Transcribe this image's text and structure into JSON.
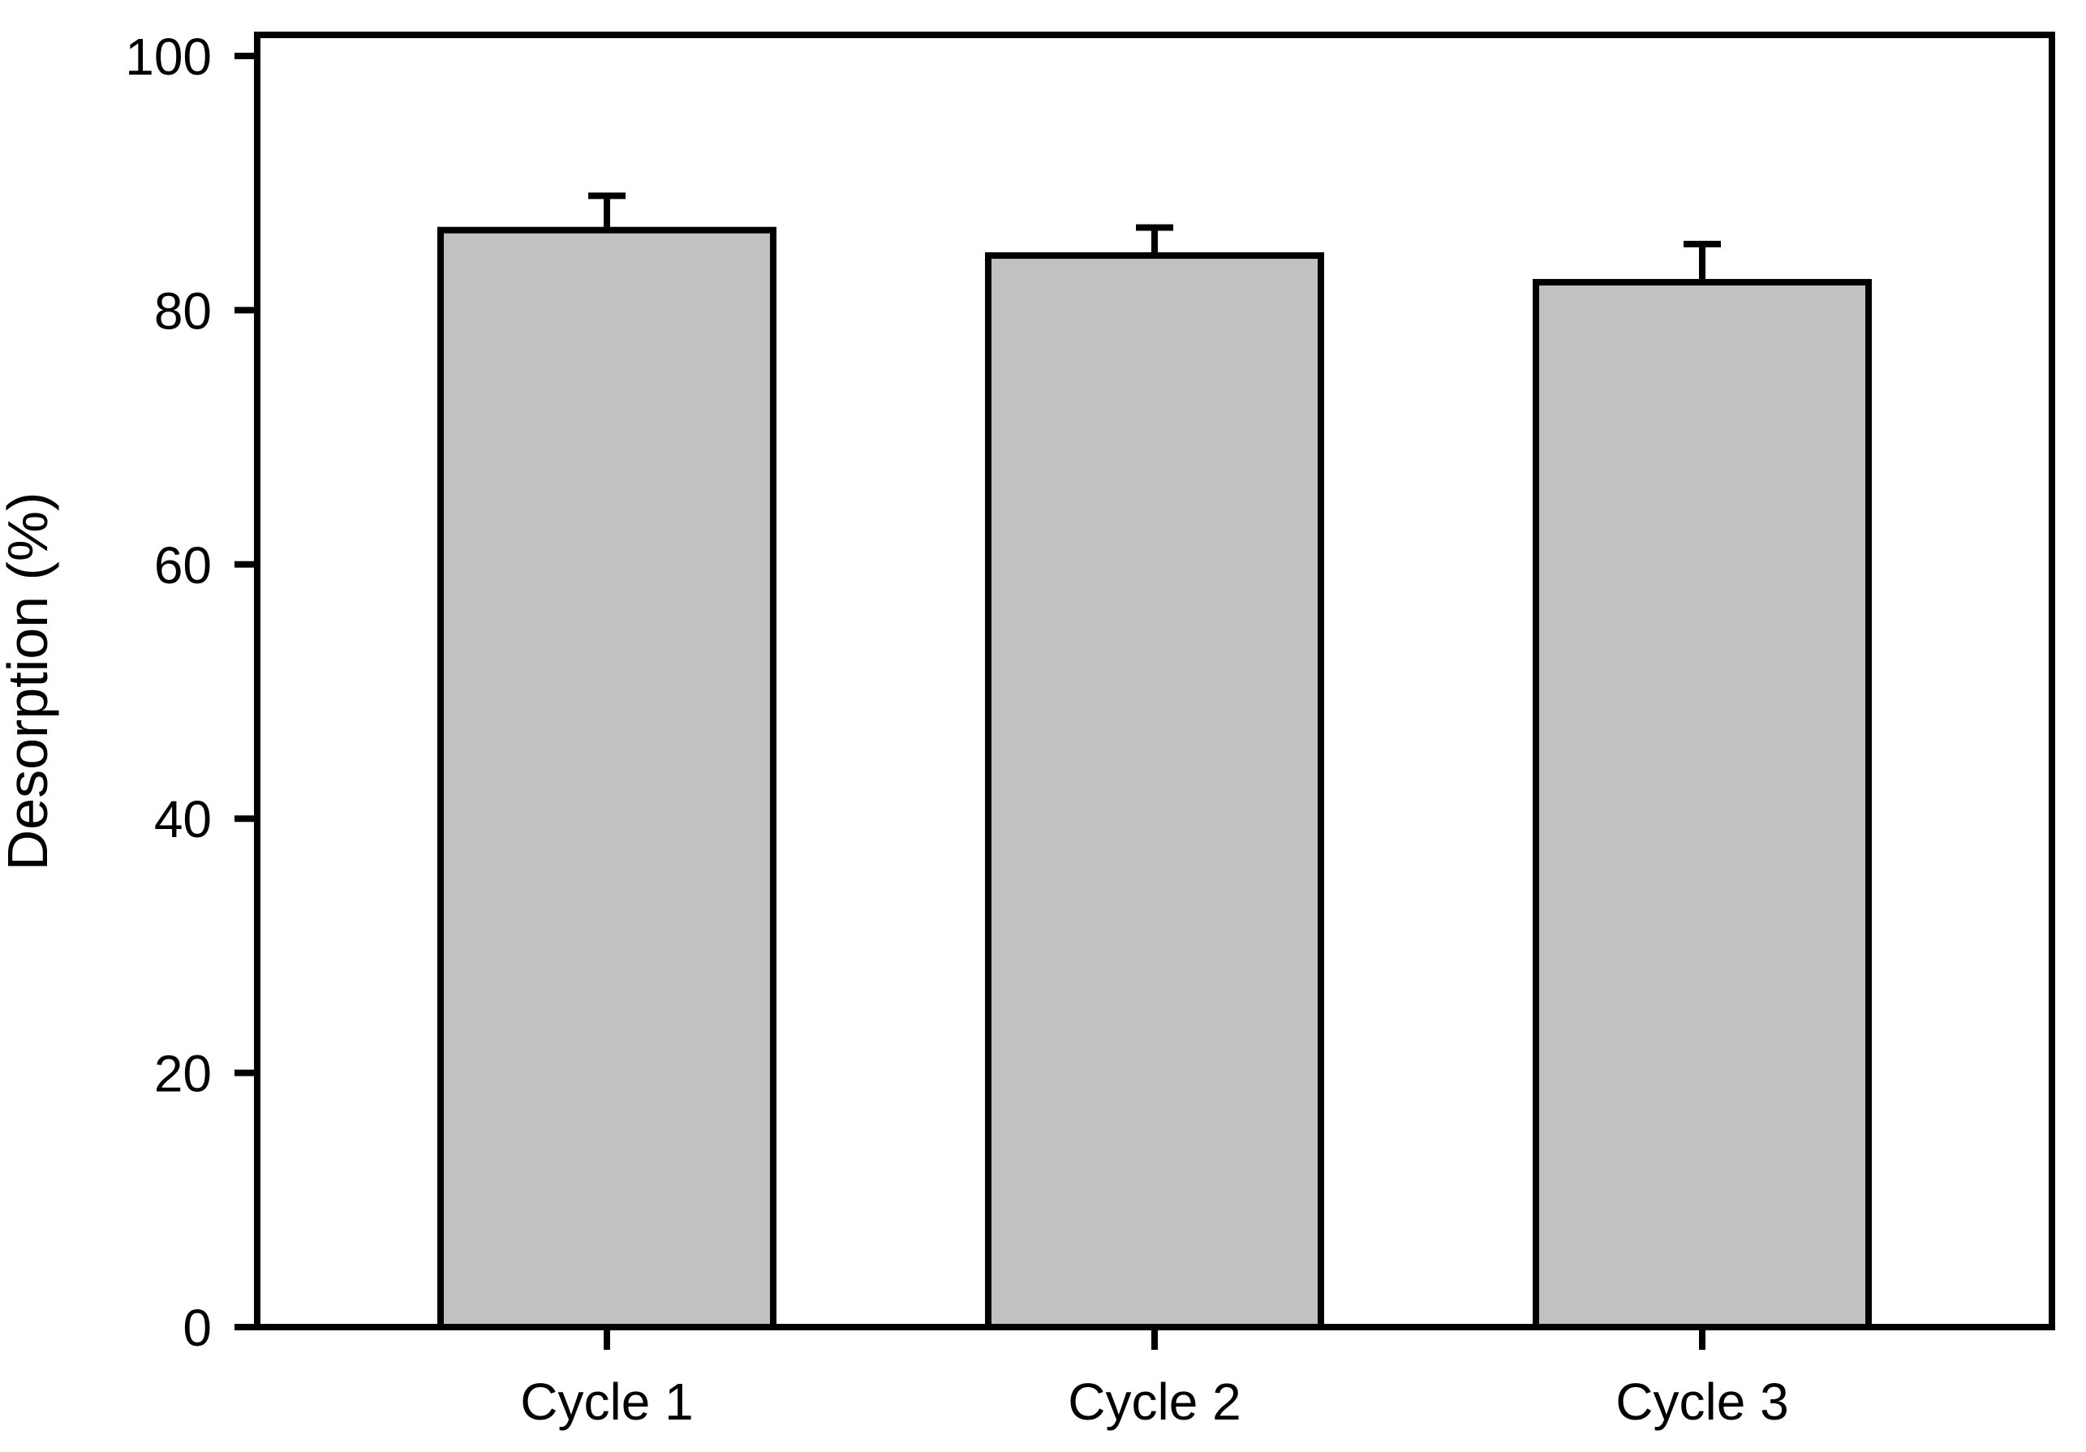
{
  "chart_data": {
    "type": "bar",
    "title": "",
    "xlabel": "",
    "ylabel": "Desorption (%)",
    "categories": [
      "Cycle 1",
      "Cycle 2",
      "Cycle 3"
    ],
    "values": [
      86.3,
      84.3,
      82.2
    ],
    "error_up": [
      2.7,
      2.2,
      3.0
    ],
    "ylim": [
      0,
      100
    ],
    "yticks": [
      0,
      20,
      40,
      60,
      80,
      100
    ],
    "grid": false,
    "legend": "none",
    "frame": "full-box",
    "tick_direction": "out",
    "bar_fill": "#c1c1c1",
    "bar_stroke": "#000000",
    "axis_color": "#000000",
    "text_color": "#000000",
    "background": "#ffffff"
  }
}
